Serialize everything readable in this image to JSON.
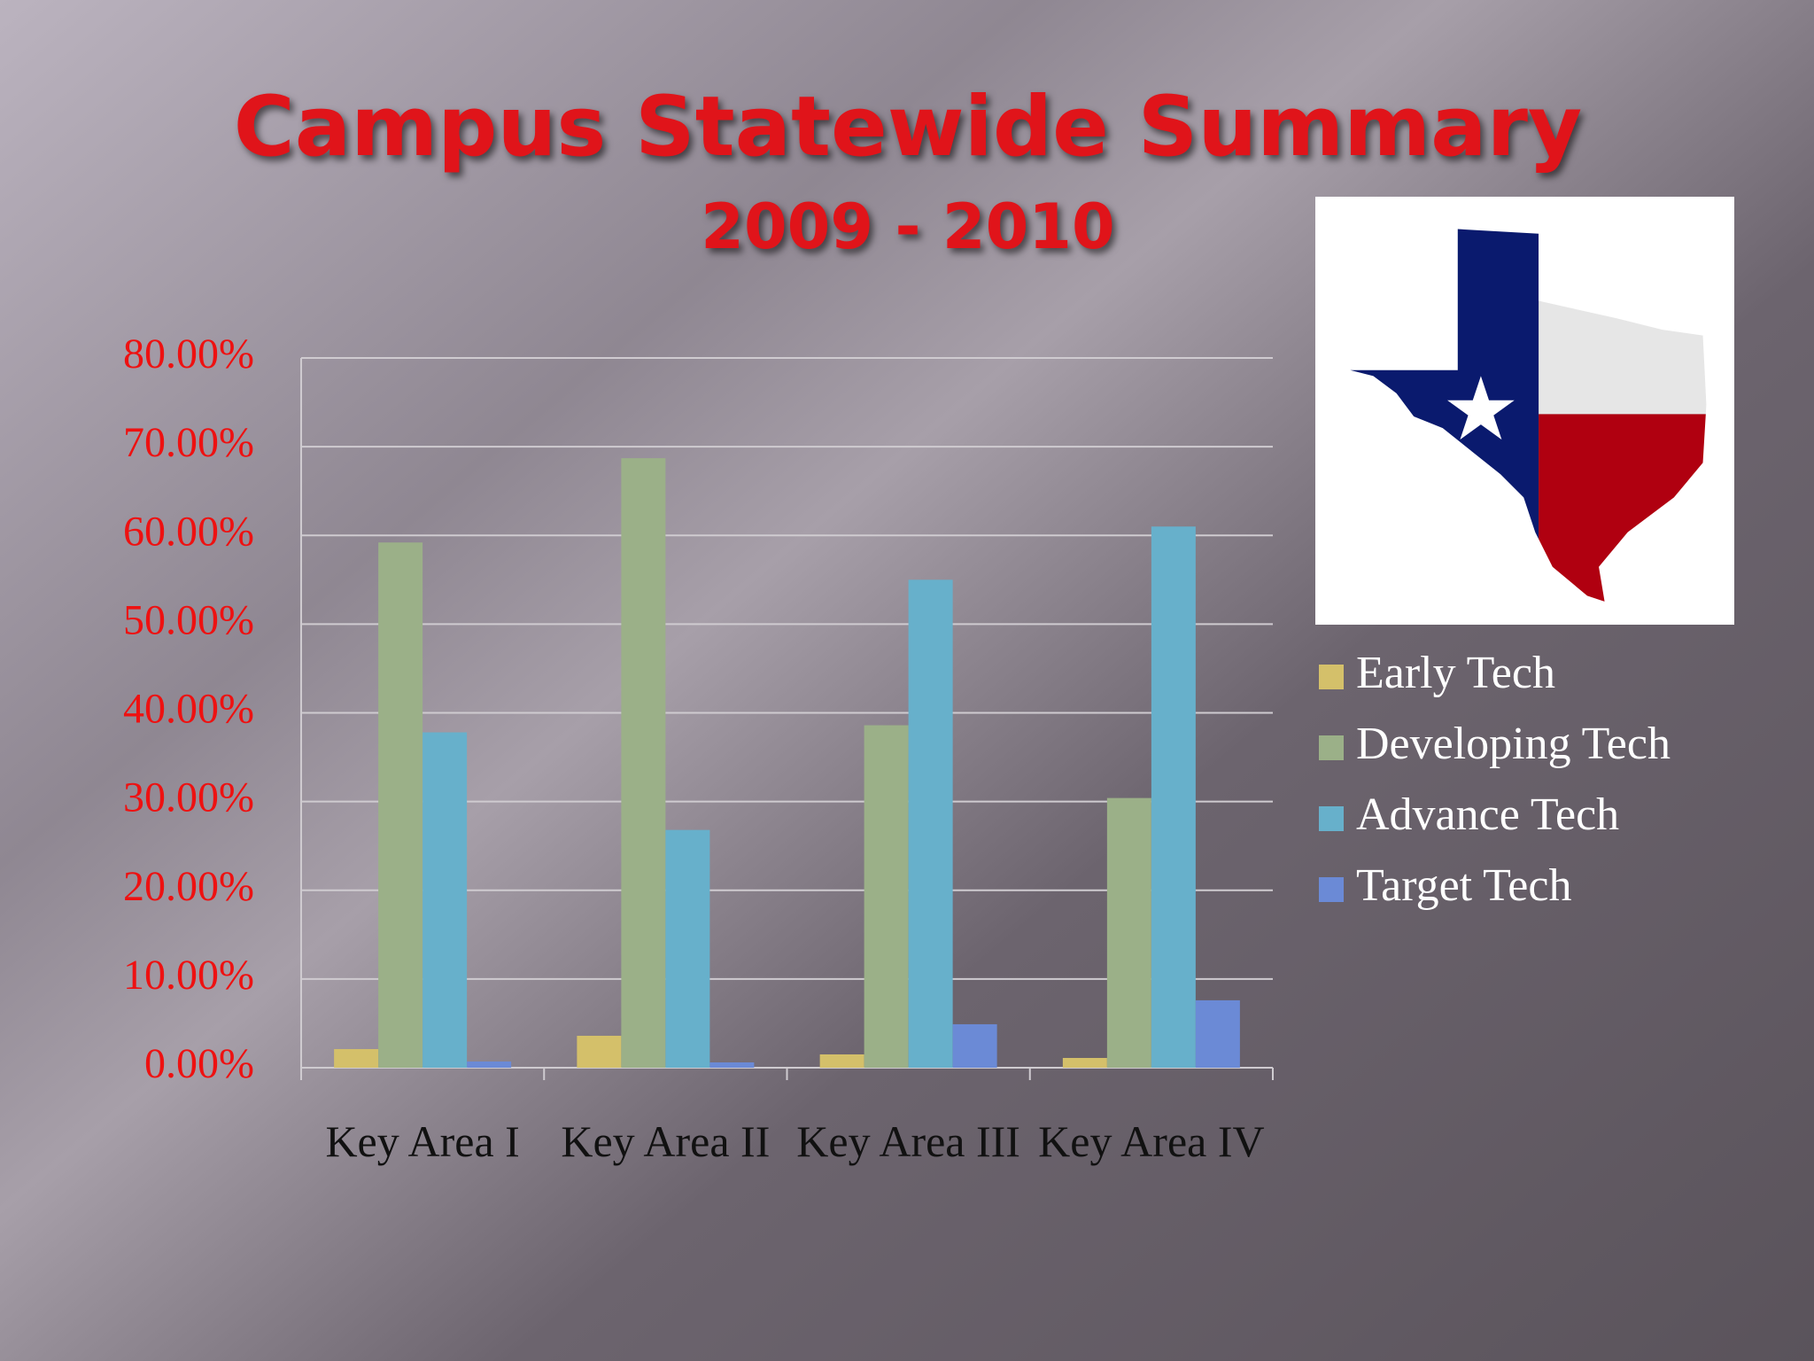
{
  "chart_data": {
    "type": "bar",
    "title": "Campus Statewide Summary",
    "subtitle": "2009 - 2010",
    "categories": [
      "Key Area I",
      "Key Area II",
      "Key Area III",
      "Key Area IV"
    ],
    "series": [
      {
        "name": "Early Tech",
        "color": "#d4c06a",
        "values": [
          2.1,
          3.6,
          1.5,
          1.1
        ]
      },
      {
        "name": "Developing Tech",
        "color": "#9bb088",
        "values": [
          59.2,
          68.7,
          38.6,
          30.4
        ]
      },
      {
        "name": "Advance Tech",
        "color": "#67b0cb",
        "values": [
          37.8,
          26.8,
          55.0,
          61.0
        ]
      },
      {
        "name": "Target Tech",
        "color": "#6b8ad6",
        "values": [
          0.7,
          0.6,
          4.9,
          7.6
        ]
      }
    ],
    "ylim": [
      0,
      80
    ],
    "yticks": [
      {
        "value": 0,
        "label": "0.00%"
      },
      {
        "value": 10,
        "label": "10.00%"
      },
      {
        "value": 20,
        "label": "20.00%"
      },
      {
        "value": 30,
        "label": "30.00%"
      },
      {
        "value": 40,
        "label": "40.00%"
      },
      {
        "value": 50,
        "label": "50.00%"
      },
      {
        "value": 60,
        "label": "60.00%"
      },
      {
        "value": 70,
        "label": "70.00%"
      },
      {
        "value": 80,
        "label": "80.00%"
      }
    ],
    "grid": true,
    "legend": "right"
  }
}
